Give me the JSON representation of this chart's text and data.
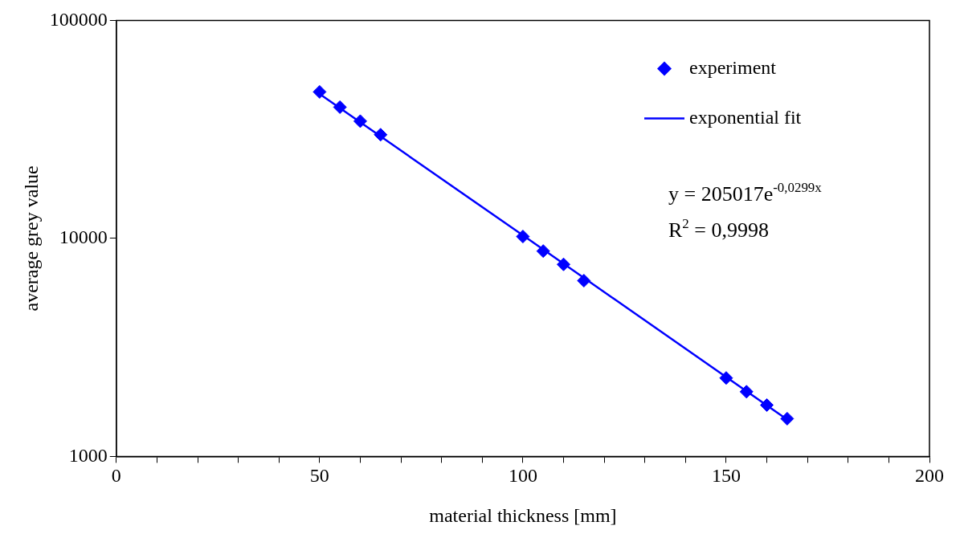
{
  "chart_data": {
    "type": "scatter",
    "xlabel": "material thickness [mm]",
    "ylabel": "average grey value",
    "log": "y",
    "grid": false,
    "legend": "top right",
    "xlim": [
      0,
      200
    ],
    "ylim": [
      1000,
      100000
    ],
    "xticks": [
      0,
      {
        "value": 10,
        "label": null
      },
      {
        "value": 20,
        "label": null
      },
      {
        "value": 30,
        "label": null
      },
      {
        "value": 40,
        "label": null
      },
      50,
      {
        "value": 60,
        "label": null
      },
      {
        "value": 70,
        "label": null
      },
      {
        "value": 80,
        "label": null
      },
      {
        "value": 90,
        "label": null
      },
      100,
      {
        "value": 110,
        "label": null
      },
      {
        "value": 120,
        "label": null
      },
      {
        "value": 130,
        "label": null
      },
      {
        "value": 140,
        "label": null
      },
      150,
      {
        "value": 160,
        "label": null
      },
      {
        "value": 170,
        "label": null
      },
      {
        "value": 180,
        "label": null
      },
      {
        "value": 190,
        "label": null
      },
      200
    ],
    "yticks": [
      1000,
      10000,
      100000
    ],
    "series": [
      {
        "name": "experiment",
        "type": "scatter",
        "marker": "diamond",
        "color": "#0000ff",
        "x": [
          50,
          55,
          60,
          65,
          100,
          105,
          110,
          115,
          150,
          155,
          160,
          165
        ],
        "values": [
          47000,
          40000,
          34500,
          29900,
          10200,
          8750,
          7600,
          6400,
          2290,
          1980,
          1720,
          1490
        ]
      },
      {
        "name": "exponential fit",
        "type": "line",
        "marker": "none",
        "line_style": "solid",
        "color": "#0000ff",
        "x": [
          50,
          100,
          165
        ],
        "values": [
          45970,
          10330,
          1476
        ]
      }
    ],
    "annotations": [
      "y = 205017e$^{-0,0299x}$",
      "R$^{2}$ = 0,9998"
    ]
  }
}
